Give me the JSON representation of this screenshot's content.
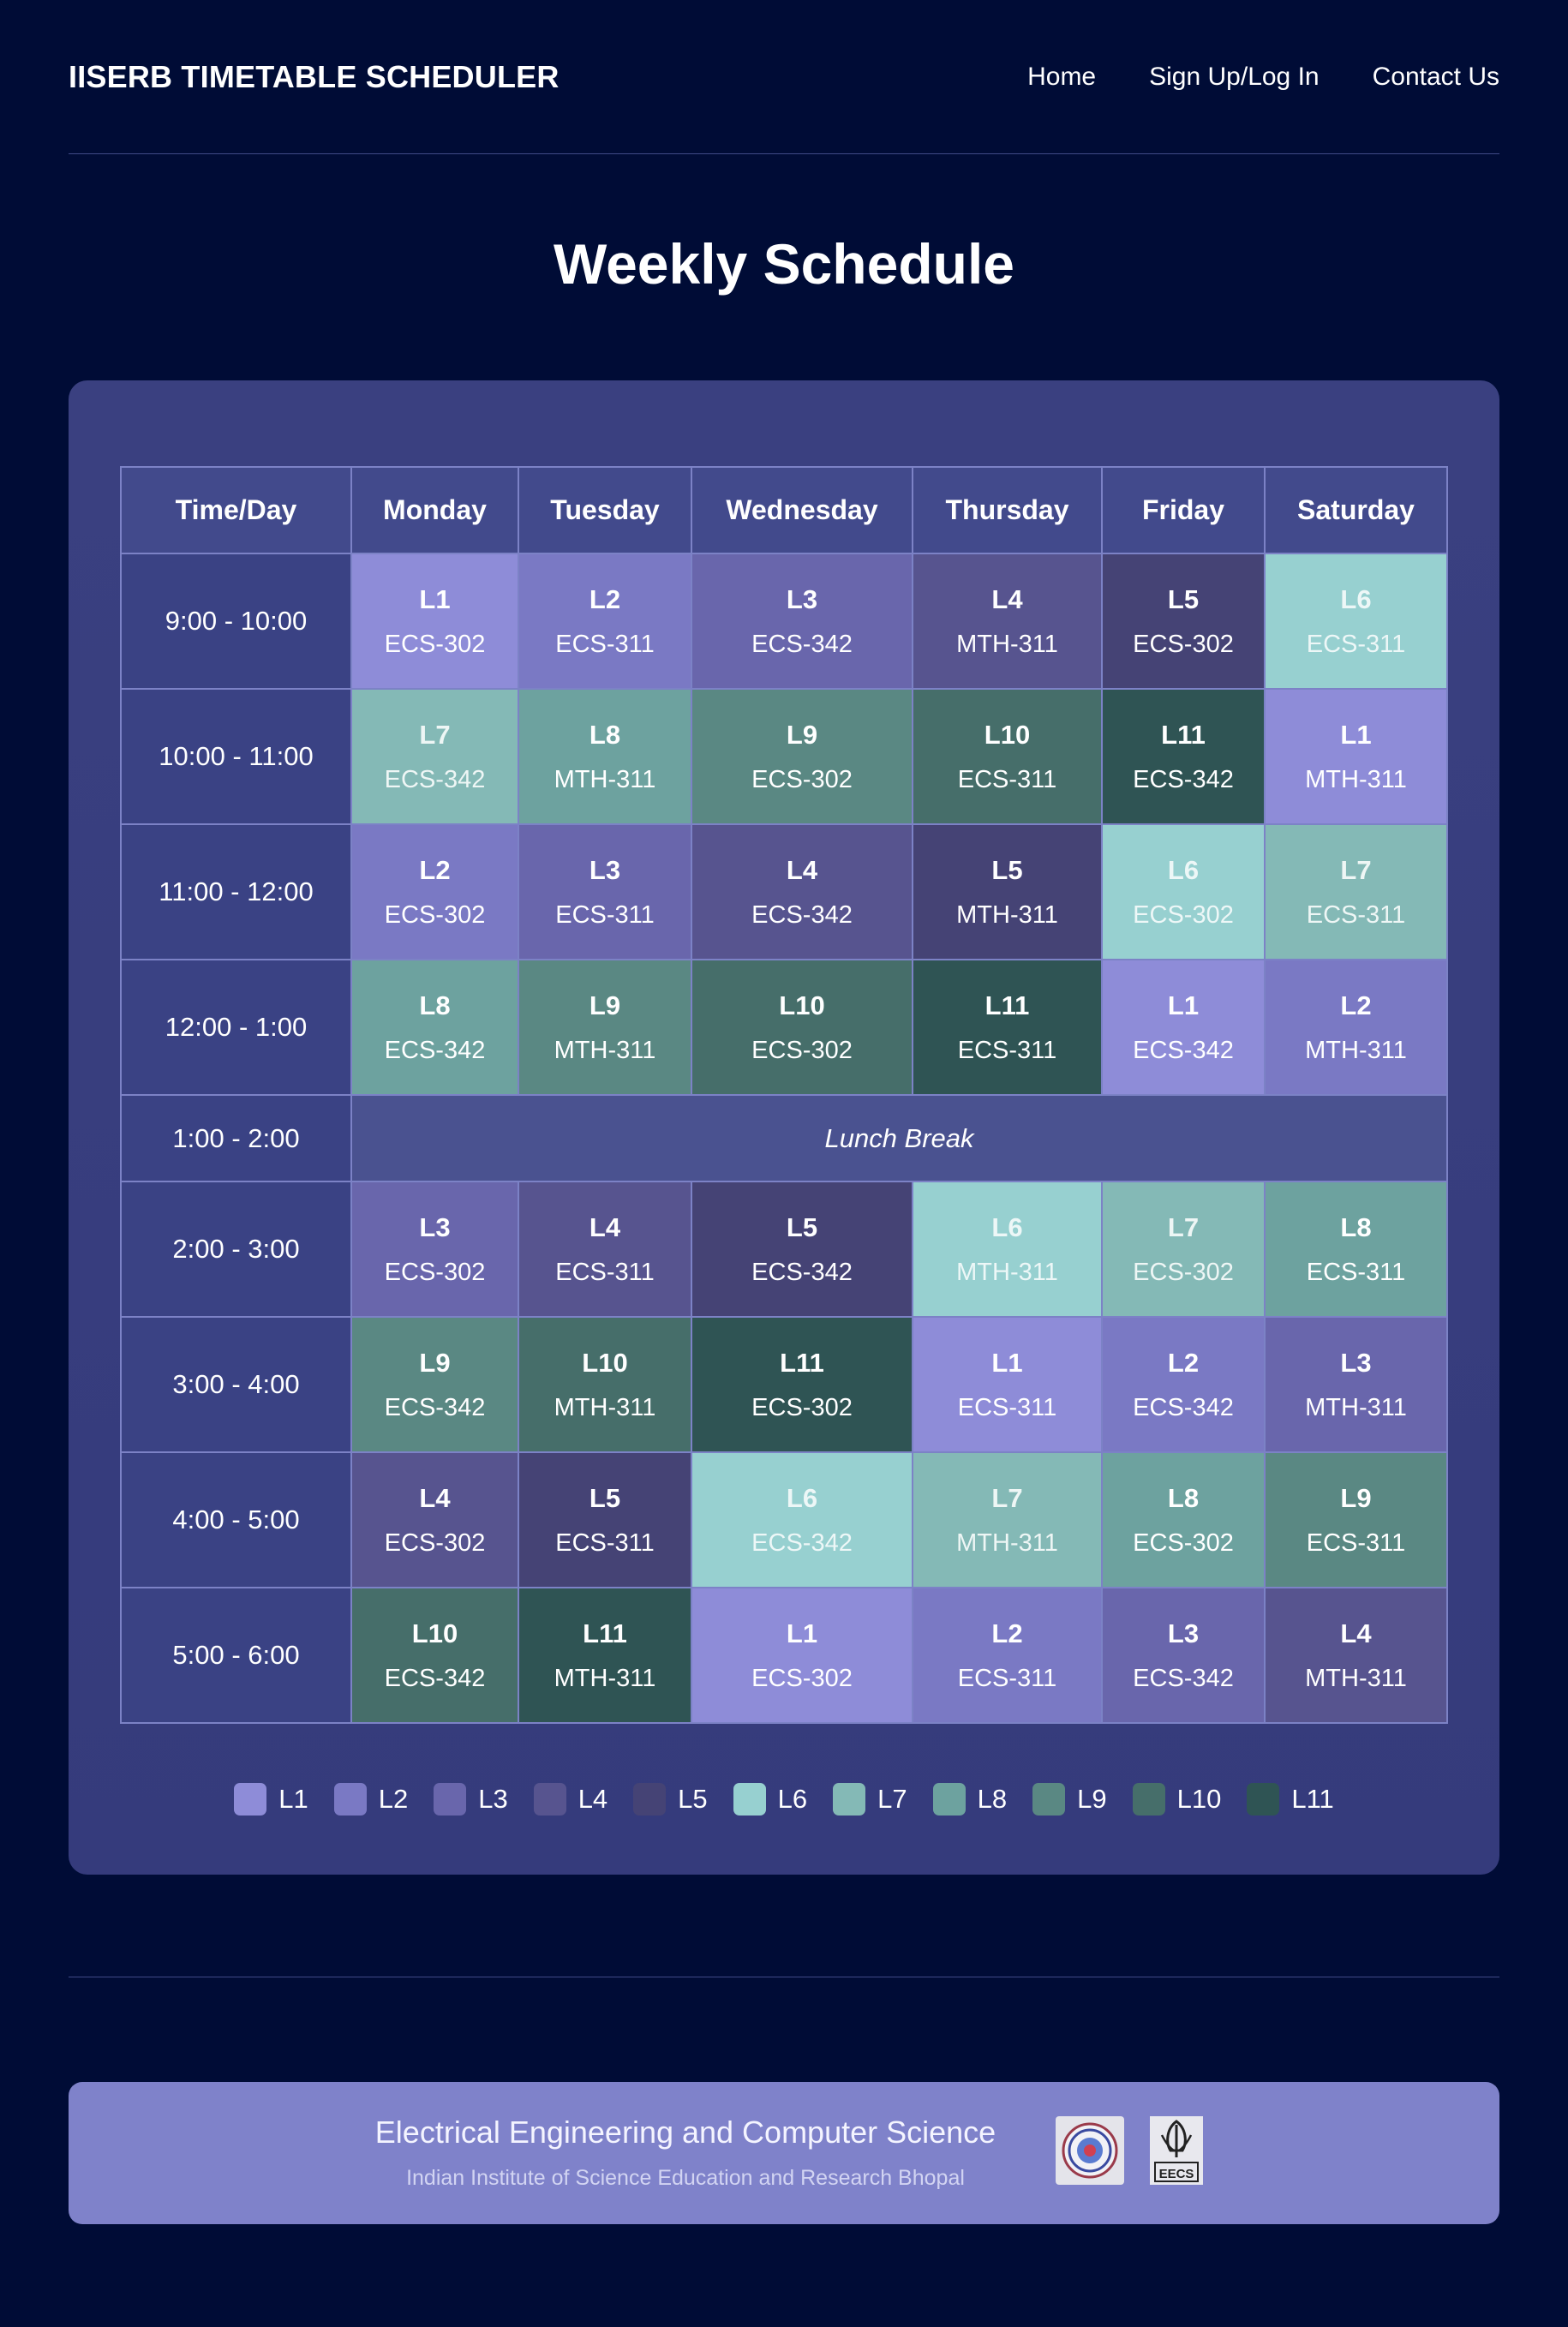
{
  "nav": {
    "brand": "IISERB TIMETABLE SCHEDULER",
    "links": [
      "Home",
      "Sign Up/Log In",
      "Contact Us"
    ]
  },
  "page_title": "Weekly Schedule",
  "table": {
    "headers": [
      "Time/Day",
      "Monday",
      "Tuesday",
      "Wednesday",
      "Thursday",
      "Friday",
      "Saturday"
    ],
    "rows": [
      {
        "time": "9:00 - 10:00",
        "slots": [
          [
            "L1",
            "ECS-302"
          ],
          [
            "L2",
            "ECS-311"
          ],
          [
            "L3",
            "ECS-342"
          ],
          [
            "L4",
            "MTH-311"
          ],
          [
            "L5",
            "ECS-302"
          ],
          [
            "L6",
            "ECS-311"
          ]
        ]
      },
      {
        "time": "10:00 - 11:00",
        "slots": [
          [
            "L7",
            "ECS-342"
          ],
          [
            "L8",
            "MTH-311"
          ],
          [
            "L9",
            "ECS-302"
          ],
          [
            "L10",
            "ECS-311"
          ],
          [
            "L11",
            "ECS-342"
          ],
          [
            "L1",
            "MTH-311"
          ]
        ]
      },
      {
        "time": "11:00 - 12:00",
        "slots": [
          [
            "L2",
            "ECS-302"
          ],
          [
            "L3",
            "ECS-311"
          ],
          [
            "L4",
            "ECS-342"
          ],
          [
            "L5",
            "MTH-311"
          ],
          [
            "L6",
            "ECS-302"
          ],
          [
            "L7",
            "ECS-311"
          ]
        ]
      },
      {
        "time": "12:00 - 1:00",
        "slots": [
          [
            "L8",
            "ECS-342"
          ],
          [
            "L9",
            "MTH-311"
          ],
          [
            "L10",
            "ECS-302"
          ],
          [
            "L11",
            "ECS-311"
          ],
          [
            "L1",
            "ECS-342"
          ],
          [
            "L2",
            "MTH-311"
          ]
        ]
      },
      {
        "time": "1:00 - 2:00",
        "lunch": "Lunch Break"
      },
      {
        "time": "2:00 - 3:00",
        "slots": [
          [
            "L3",
            "ECS-302"
          ],
          [
            "L4",
            "ECS-311"
          ],
          [
            "L5",
            "ECS-342"
          ],
          [
            "L6",
            "MTH-311"
          ],
          [
            "L7",
            "ECS-302"
          ],
          [
            "L8",
            "ECS-311"
          ]
        ]
      },
      {
        "time": "3:00 - 4:00",
        "slots": [
          [
            "L9",
            "ECS-342"
          ],
          [
            "L10",
            "MTH-311"
          ],
          [
            "L11",
            "ECS-302"
          ],
          [
            "L1",
            "ECS-311"
          ],
          [
            "L2",
            "ECS-342"
          ],
          [
            "L3",
            "MTH-311"
          ]
        ]
      },
      {
        "time": "4:00 - 5:00",
        "slots": [
          [
            "L4",
            "ECS-302"
          ],
          [
            "L5",
            "ECS-311"
          ],
          [
            "L6",
            "ECS-342"
          ],
          [
            "L7",
            "MTH-311"
          ],
          [
            "L8",
            "ECS-302"
          ],
          [
            "L9",
            "ECS-311"
          ]
        ]
      },
      {
        "time": "5:00 - 6:00",
        "slots": [
          [
            "L10",
            "ECS-342"
          ],
          [
            "L11",
            "MTH-311"
          ],
          [
            "L1",
            "ECS-302"
          ],
          [
            "L2",
            "ECS-311"
          ],
          [
            "L3",
            "ECS-342"
          ],
          [
            "L4",
            "MTH-311"
          ]
        ]
      }
    ]
  },
  "legend": [
    {
      "label": "L1",
      "color": "#8e8cd8"
    },
    {
      "label": "L2",
      "color": "#7a79c4"
    },
    {
      "label": "L3",
      "color": "#6966ac"
    },
    {
      "label": "L4",
      "color": "#57548f"
    },
    {
      "label": "L5",
      "color": "#454375"
    },
    {
      "label": "L6",
      "color": "#97d0d0"
    },
    {
      "label": "L7",
      "color": "#84b9b6"
    },
    {
      "label": "L8",
      "color": "#6da29f"
    },
    {
      "label": "L9",
      "color": "#5a8883"
    },
    {
      "label": "L10",
      "color": "#466e6a"
    },
    {
      "label": "L11",
      "color": "#2f5454"
    }
  ],
  "footer": {
    "title": "Electrical Engineering and Computer Science",
    "subtitle": "Indian Institute of Science Education and Research Bhopal",
    "logo_text": "EECS"
  },
  "colors": {
    "background": "#000c36",
    "panel": "#373d7e",
    "footer": "#7f82ca"
  }
}
